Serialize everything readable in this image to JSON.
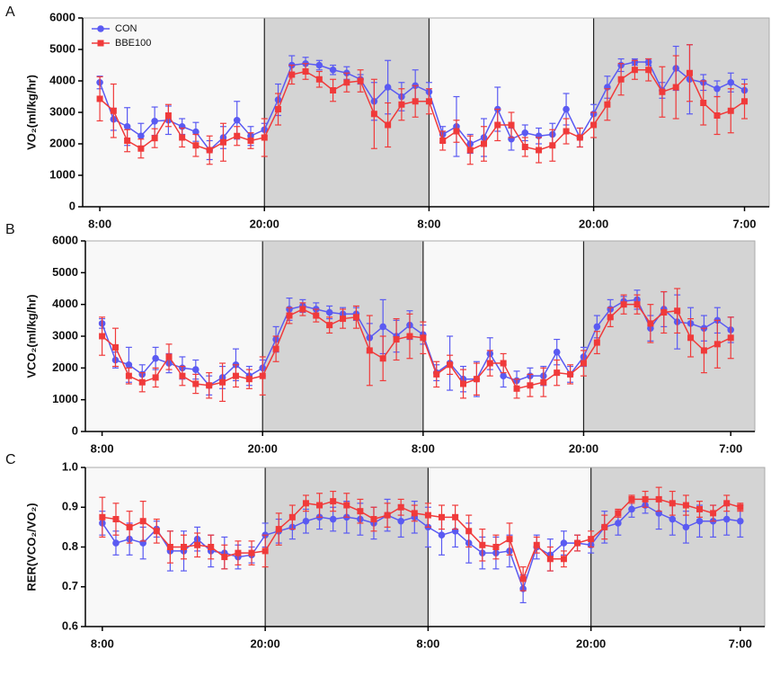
{
  "chart_data": [
    {
      "type": "line",
      "panel": "A",
      "ylabel": "VO₂(ml/kg/hr)",
      "legend": "upper left",
      "x": [
        0,
        1,
        2,
        3,
        4,
        5,
        6,
        7,
        8,
        9,
        10,
        11,
        12,
        13,
        14,
        15,
        16,
        17,
        18,
        19,
        20,
        21,
        22,
        23,
        24,
        25,
        26,
        27,
        28,
        29,
        30,
        31,
        32,
        33,
        34,
        35,
        36,
        37,
        38,
        39,
        40,
        41,
        42,
        43,
        44,
        45,
        46,
        47
      ],
      "xlim": [
        -1.25,
        48.8
      ],
      "xticks": [
        {
          "value": 0,
          "label": "8:00"
        },
        {
          "value": 12,
          "label": "20:00"
        },
        {
          "value": 24,
          "label": "8:00"
        },
        {
          "value": 36,
          "label": "20:00"
        },
        {
          "value": 47,
          "label": "7:00"
        }
      ],
      "ylim": [
        0,
        6000
      ],
      "yticks": [
        0,
        1000,
        2000,
        3000,
        4000,
        5000,
        6000
      ],
      "series": [
        {
          "name": "CON",
          "color": "#5a5af2",
          "marker": "circle",
          "values": [
            3950,
            2780,
            2550,
            2250,
            2720,
            2750,
            2550,
            2380,
            1800,
            2200,
            2750,
            2250,
            2450,
            3400,
            4500,
            4550,
            4500,
            4350,
            4250,
            4050,
            3350,
            3800,
            3500,
            3850,
            3650,
            2300,
            2550,
            2000,
            2200,
            3100,
            2150,
            2350,
            2250,
            2300,
            3100,
            2200,
            2950,
            3800,
            4500,
            4600,
            4600,
            3700,
            4400,
            4050,
            3950,
            3750,
            3950,
            3700
          ],
          "errors": [
            200,
            350,
            600,
            400,
            450,
            450,
            250,
            300,
            300,
            350,
            600,
            300,
            200,
            500,
            300,
            200,
            150,
            150,
            200,
            150,
            600,
            850,
            450,
            500,
            300,
            250,
            950,
            300,
            600,
            700,
            350,
            250,
            250,
            350,
            500,
            300,
            300,
            350,
            200,
            100,
            100,
            250,
            700,
            1100,
            250,
            250,
            300,
            350
          ]
        },
        {
          "name": "BBE100",
          "color": "#f03a3a",
          "marker": "square",
          "values": [
            3430,
            3050,
            2100,
            1850,
            2180,
            2900,
            2200,
            1950,
            1800,
            2050,
            2250,
            2100,
            2200,
            3100,
            4200,
            4300,
            4050,
            3700,
            3950,
            4000,
            2950,
            2600,
            3250,
            3350,
            3350,
            2100,
            2400,
            1800,
            2000,
            2600,
            2600,
            1900,
            1800,
            1950,
            2400,
            2200,
            2600,
            3250,
            4050,
            4350,
            4350,
            3650,
            3800,
            4250,
            3300,
            2900,
            3050,
            3350
          ],
          "errors": [
            700,
            850,
            350,
            300,
            300,
            350,
            300,
            350,
            450,
            600,
            300,
            250,
            600,
            500,
            300,
            250,
            250,
            350,
            300,
            350,
            1100,
            700,
            500,
            500,
            400,
            300,
            350,
            450,
            550,
            500,
            400,
            300,
            400,
            500,
            400,
            300,
            400,
            500,
            500,
            300,
            350,
            800,
            1000,
            900,
            700,
            600,
            700,
            550
          ]
        }
      ]
    },
    {
      "type": "line",
      "panel": "B",
      "ylabel": "VCO₂(ml/kg/hr)",
      "x": [
        0,
        1,
        2,
        3,
        4,
        5,
        6,
        7,
        8,
        9,
        10,
        11,
        12,
        13,
        14,
        15,
        16,
        17,
        18,
        19,
        20,
        21,
        22,
        23,
        24,
        25,
        26,
        27,
        28,
        29,
        30,
        31,
        32,
        33,
        34,
        35,
        36,
        37,
        38,
        39,
        40,
        41,
        42,
        43,
        44,
        45,
        46,
        47
      ],
      "xlim": [
        -1.25,
        48.8
      ],
      "xticks": [
        {
          "value": 0,
          "label": "8:00"
        },
        {
          "value": 12,
          "label": "20:00"
        },
        {
          "value": 24,
          "label": "8:00"
        },
        {
          "value": 36,
          "label": "20:00"
        },
        {
          "value": 47,
          "label": "7:00"
        }
      ],
      "ylim": [
        0,
        6000
      ],
      "yticks": [
        0,
        1000,
        2000,
        3000,
        4000,
        5000,
        6000
      ],
      "series": [
        {
          "color": "#5a5af2",
          "marker": "circle",
          "values": [
            3400,
            2250,
            2100,
            1800,
            2300,
            2150,
            2000,
            1950,
            1450,
            1700,
            2100,
            1750,
            2000,
            2900,
            3850,
            3950,
            3850,
            3750,
            3700,
            3700,
            2950,
            3300,
            3000,
            3350,
            3050,
            1850,
            2150,
            1650,
            1650,
            2450,
            1750,
            1600,
            1750,
            1750,
            2500,
            1800,
            2350,
            3300,
            3850,
            4100,
            4150,
            3250,
            3850,
            3450,
            3400,
            3250,
            3500,
            3200
          ],
          "errors": [
            150,
            250,
            550,
            300,
            350,
            300,
            350,
            300,
            300,
            350,
            500,
            300,
            250,
            400,
            350,
            200,
            200,
            200,
            200,
            200,
            450,
            850,
            500,
            450,
            300,
            250,
            850,
            400,
            550,
            500,
            350,
            300,
            250,
            300,
            400,
            250,
            300,
            350,
            300,
            150,
            300,
            400,
            550,
            850,
            500,
            400,
            400,
            400
          ]
        },
        {
          "color": "#f03a3a",
          "marker": "square",
          "values": [
            3000,
            2650,
            1750,
            1550,
            1700,
            2350,
            1750,
            1500,
            1450,
            1550,
            1750,
            1650,
            1750,
            2600,
            3650,
            3850,
            3650,
            3350,
            3550,
            3600,
            2550,
            2300,
            2900,
            3000,
            2950,
            1800,
            2100,
            1500,
            1650,
            2150,
            2150,
            1350,
            1450,
            1550,
            1850,
            1800,
            2150,
            2800,
            3600,
            4000,
            4000,
            3400,
            3750,
            3800,
            2950,
            2550,
            2750,
            2950
          ],
          "errors": [
            600,
            600,
            250,
            300,
            300,
            400,
            300,
            300,
            400,
            600,
            350,
            300,
            600,
            400,
            250,
            200,
            200,
            250,
            300,
            350,
            1100,
            700,
            650,
            700,
            500,
            400,
            300,
            450,
            500,
            400,
            300,
            300,
            350,
            450,
            400,
            300,
            400,
            350,
            300,
            300,
            300,
            600,
            650,
            700,
            600,
            700,
            750,
            650
          ]
        }
      ]
    },
    {
      "type": "line",
      "panel": "C",
      "ylabel": "RER(VCO₂/VO₂)",
      "x": [
        0,
        1,
        2,
        3,
        4,
        5,
        6,
        7,
        8,
        9,
        10,
        11,
        12,
        13,
        14,
        15,
        16,
        17,
        18,
        19,
        20,
        21,
        22,
        23,
        24,
        25,
        26,
        27,
        28,
        29,
        30,
        31,
        32,
        33,
        34,
        35,
        36,
        37,
        38,
        39,
        40,
        41,
        42,
        43,
        44,
        45,
        46,
        47
      ],
      "xlim": [
        -1.25,
        48.8
      ],
      "xticks": [
        {
          "value": 0,
          "label": "8:00"
        },
        {
          "value": 12,
          "label": "20:00"
        },
        {
          "value": 24,
          "label": "8:00"
        },
        {
          "value": 36,
          "label": "20:00"
        },
        {
          "value": 47,
          "label": "7:00"
        }
      ],
      "ylim": [
        0.6,
        1.0
      ],
      "yticks": [
        0.6,
        0.7,
        0.8,
        0.9,
        {
          "value": 1,
          "label": "1.0"
        }
      ],
      "series": [
        {
          "color": "#5a5af2",
          "marker": "circle",
          "values": [
            0.86,
            0.81,
            0.82,
            0.81,
            0.845,
            0.79,
            0.79,
            0.82,
            0.79,
            0.785,
            0.775,
            0.78,
            0.83,
            0.84,
            0.85,
            0.865,
            0.875,
            0.87,
            0.875,
            0.87,
            0.86,
            0.88,
            0.865,
            0.875,
            0.85,
            0.83,
            0.84,
            0.81,
            0.785,
            0.785,
            0.79,
            0.695,
            0.8,
            0.78,
            0.81,
            0.81,
            0.805,
            0.85,
            0.86,
            0.895,
            0.905,
            0.885,
            0.87,
            0.85,
            0.865,
            0.865,
            0.87,
            0.865
          ],
          "errors": [
            0.03,
            0.03,
            0.04,
            0.04,
            0.02,
            0.05,
            0.05,
            0.03,
            0.04,
            0.04,
            0.03,
            0.02,
            0.03,
            0.03,
            0.03,
            0.03,
            0.03,
            0.03,
            0.04,
            0.04,
            0.04,
            0.04,
            0.04,
            0.04,
            0.05,
            0.05,
            0.04,
            0.05,
            0.04,
            0.04,
            0.04,
            0.035,
            0.03,
            0.04,
            0.03,
            0.02,
            0.02,
            0.04,
            0.03,
            0.02,
            0.02,
            0.04,
            0.04,
            0.04,
            0.04,
            0.04,
            0.04,
            0.04
          ]
        },
        {
          "color": "#f03a3a",
          "marker": "square",
          "values": [
            0.875,
            0.87,
            0.85,
            0.865,
            0.84,
            0.8,
            0.8,
            0.805,
            0.8,
            0.775,
            0.785,
            0.785,
            0.79,
            0.845,
            0.875,
            0.91,
            0.905,
            0.915,
            0.905,
            0.89,
            0.87,
            0.88,
            0.9,
            0.885,
            0.88,
            0.875,
            0.875,
            0.84,
            0.805,
            0.8,
            0.82,
            0.72,
            0.805,
            0.77,
            0.77,
            0.81,
            0.82,
            0.85,
            0.885,
            0.92,
            0.92,
            0.92,
            0.91,
            0.905,
            0.895,
            0.885,
            0.91,
            0.9
          ],
          "errors": [
            0.05,
            0.04,
            0.04,
            0.05,
            0.03,
            0.04,
            0.03,
            0.03,
            0.03,
            0.03,
            0.03,
            0.03,
            0.04,
            0.04,
            0.03,
            0.02,
            0.03,
            0.025,
            0.03,
            0.03,
            0.03,
            0.03,
            0.02,
            0.02,
            0.03,
            0.03,
            0.03,
            0.04,
            0.04,
            0.03,
            0.04,
            0.03,
            0.02,
            0.03,
            0.02,
            0.02,
            0.02,
            0.03,
            0.01,
            0.01,
            0.02,
            0.03,
            0.03,
            0.025,
            0.02,
            0.02,
            0.02,
            0.01
          ]
        }
      ]
    }
  ]
}
